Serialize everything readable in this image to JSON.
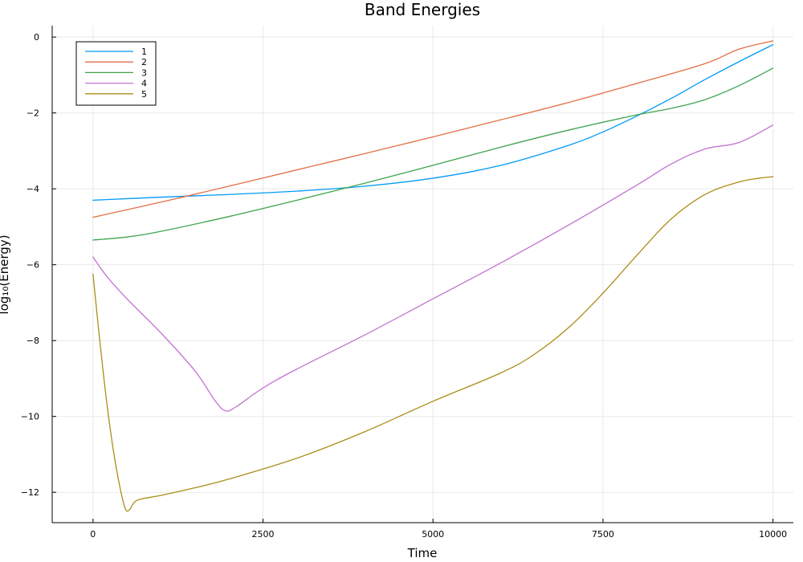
{
  "chart_data": {
    "type": "line",
    "title": "Band Energies",
    "xlabel": "Time",
    "ylabel": "log₁₀(Energy)",
    "xlim": [
      -600,
      10300
    ],
    "ylim": [
      -12.8,
      0.3
    ],
    "xticks": [
      0,
      2500,
      5000,
      7500,
      10000
    ],
    "xtick_labels": [
      "0",
      "2500",
      "5000",
      "7500",
      "10000"
    ],
    "yticks": [
      0,
      -2,
      -4,
      -6,
      -8,
      -10,
      -12
    ],
    "ytick_labels": [
      "0",
      "−2",
      "−4",
      "−6",
      "−8",
      "−10",
      "−12"
    ],
    "grid": true,
    "legend_position": "top-left",
    "series": [
      {
        "name": "1",
        "color": "#009af9",
        "x": [
          0,
          1000,
          2000,
          3000,
          4000,
          5000,
          6000,
          7000,
          7500,
          8000,
          8500,
          9000,
          9500,
          10000
        ],
        "y": [
          -4.3,
          -4.22,
          -4.15,
          -4.06,
          -3.93,
          -3.72,
          -3.38,
          -2.85,
          -2.5,
          -2.08,
          -1.62,
          -1.12,
          -0.65,
          -0.2
        ]
      },
      {
        "name": "2",
        "color": "#e26f46",
        "x": [
          0,
          1000,
          2000,
          3000,
          4000,
          5000,
          6000,
          7000,
          8000,
          9000,
          9500,
          10000
        ],
        "y": [
          -4.75,
          -4.35,
          -3.93,
          -3.5,
          -3.07,
          -2.63,
          -2.18,
          -1.72,
          -1.22,
          -0.7,
          -0.32,
          -0.1
        ]
      },
      {
        "name": "3",
        "color": "#3da44d",
        "x": [
          0,
          500,
          1000,
          2000,
          3000,
          4000,
          5000,
          6000,
          7000,
          8000,
          8500,
          9000,
          9500,
          10000
        ],
        "y": [
          -5.35,
          -5.27,
          -5.12,
          -4.73,
          -4.3,
          -3.85,
          -3.38,
          -2.9,
          -2.45,
          -2.05,
          -1.88,
          -1.65,
          -1.28,
          -0.82
        ]
      },
      {
        "name": "4",
        "color": "#c271d2",
        "x": [
          0,
          200,
          500,
          1000,
          1500,
          1800,
          1950,
          2100,
          2500,
          3000,
          4000,
          5000,
          6000,
          7000,
          8000,
          8500,
          9000,
          9500,
          10000
        ],
        "y": [
          -5.8,
          -6.3,
          -6.9,
          -7.8,
          -8.8,
          -9.6,
          -9.85,
          -9.75,
          -9.25,
          -8.75,
          -7.85,
          -6.9,
          -5.95,
          -4.95,
          -3.9,
          -3.35,
          -2.95,
          -2.78,
          -2.32
        ]
      },
      {
        "name": "5",
        "color": "#ac8d18",
        "x": [
          0,
          100,
          200,
          300,
          400,
          480,
          540,
          600,
          700,
          1000,
          1500,
          2000,
          3000,
          4000,
          5000,
          6000,
          6500,
          7000,
          7500,
          8000,
          8500,
          9000,
          9500,
          9800,
          10000
        ],
        "y": [
          -6.25,
          -8.0,
          -9.6,
          -10.9,
          -11.9,
          -12.45,
          -12.45,
          -12.28,
          -12.18,
          -12.08,
          -11.88,
          -11.65,
          -11.1,
          -10.4,
          -9.6,
          -8.85,
          -8.35,
          -7.65,
          -6.75,
          -5.75,
          -4.8,
          -4.15,
          -3.82,
          -3.72,
          -3.68
        ]
      }
    ]
  }
}
